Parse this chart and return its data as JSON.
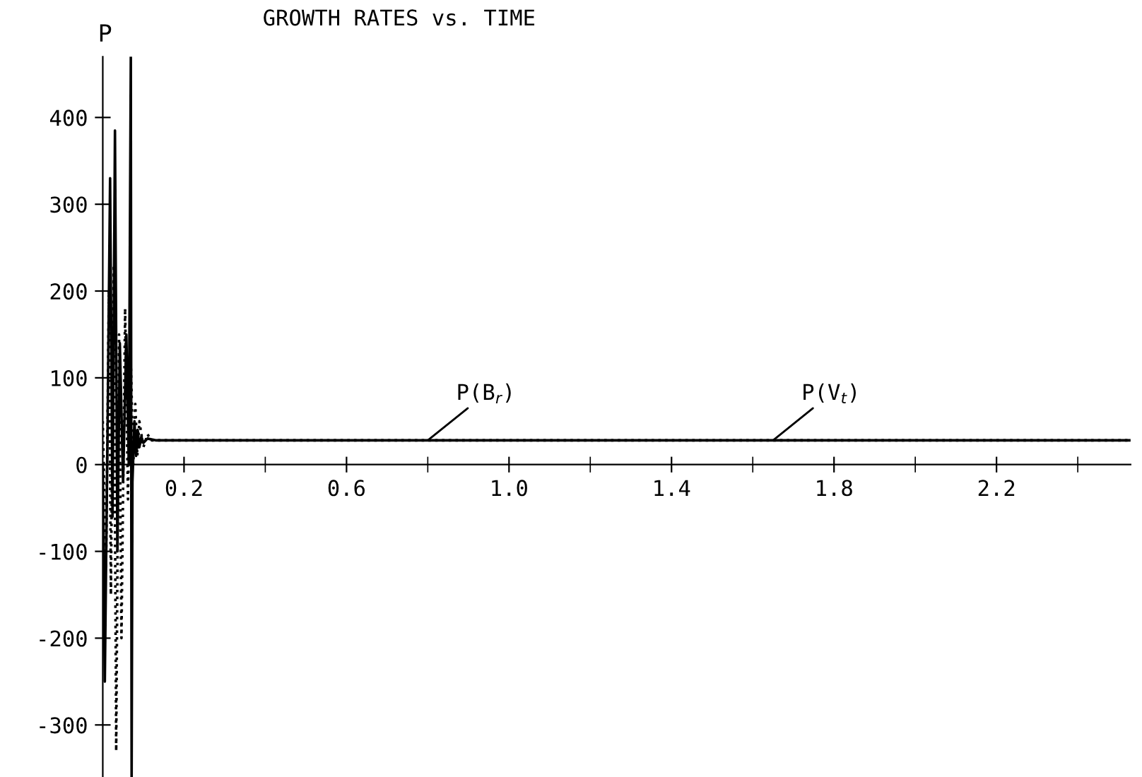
{
  "chart_data": {
    "type": "line",
    "title": "GROWTH RATES vs. TIME",
    "ylabel": "P",
    "xlim": [
      0,
      2.53
    ],
    "ylim": [
      -360,
      470
    ],
    "xticks": [
      {
        "value": 0.2,
        "label": "0.2"
      },
      {
        "value": 0.4,
        "label": null
      },
      {
        "value": 0.6,
        "label": "0.6"
      },
      {
        "value": 0.8,
        "label": null
      },
      {
        "value": 1.0,
        "label": "1.0"
      },
      {
        "value": 1.2,
        "label": null
      },
      {
        "value": 1.4,
        "label": "1.4"
      },
      {
        "value": 1.6,
        "label": null
      },
      {
        "value": 1.8,
        "label": "1.8"
      },
      {
        "value": 2.0,
        "label": null
      },
      {
        "value": 2.2,
        "label": "2.2"
      },
      {
        "value": 2.4,
        "label": null
      }
    ],
    "yticks": [
      -300,
      -200,
      -100,
      0,
      100,
      200,
      300,
      400
    ],
    "grid": false,
    "legend": false,
    "marker": "none",
    "series": [
      {
        "color": "#000000",
        "line_style": "solid",
        "x": [
          0,
          0.005,
          0.012,
          0.018,
          0.024,
          0.03,
          0.036,
          0.042,
          0.05,
          0.058,
          0.064,
          0.069,
          0.071,
          0.073,
          0.078,
          0.082,
          0.086,
          0.09,
          0.095,
          0.1,
          0.11,
          0.13,
          2.53
        ],
        "values": [
          0,
          -250,
          50,
          330,
          -60,
          385,
          -100,
          140,
          -20,
          150,
          0,
          470,
          -360,
          -20,
          50,
          10,
          40,
          20,
          32,
          25,
          30,
          28,
          28
        ]
      },
      {
        "color": "#000000",
        "line_style": "dotted",
        "x": [
          0,
          0.008,
          0.015,
          0.02,
          0.027,
          0.033,
          0.04,
          0.046,
          0.055,
          0.062,
          0.068,
          0.075,
          0.08,
          0.085,
          0.09,
          0.1,
          0.11,
          0.12,
          2.53
        ],
        "values": [
          50,
          -120,
          200,
          -150,
          230,
          -330,
          150,
          -200,
          180,
          -40,
          140,
          0,
          70,
          10,
          50,
          20,
          35,
          28,
          28
        ]
      }
    ],
    "annotations": [
      {
        "text": "P(B$_{r}$)",
        "x": 0.8,
        "y": 28
      },
      {
        "text": "P(V$_{t}$)",
        "x": 1.65,
        "y": 28
      }
    ]
  }
}
